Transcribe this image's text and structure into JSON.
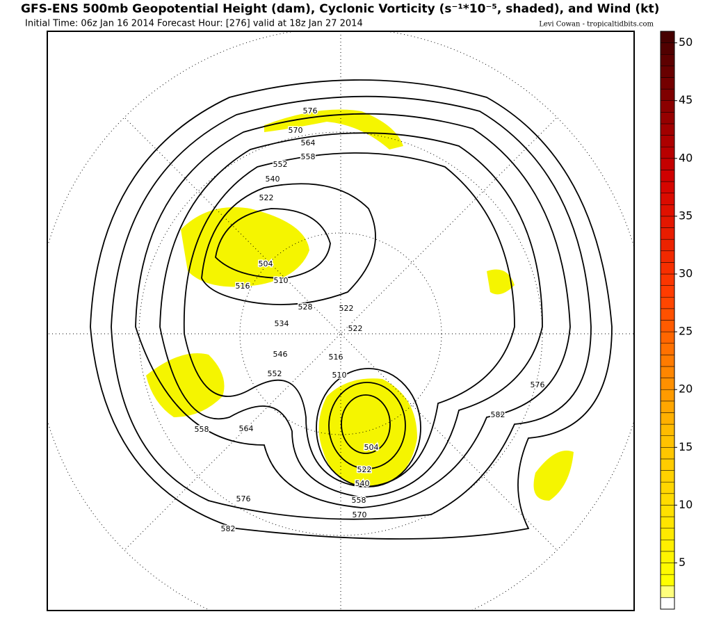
{
  "header": {
    "title": "GFS-ENS 500mb Geopotential Height (dam), Cyclonic Vorticity (s⁻¹*10⁻⁵, shaded), and Wind (kt)",
    "subtitle": "Initial Time: 06z Jan 16 2014 Forecast Hour: [276] valid at 18z Jan 27 2014",
    "credit": "Levi Cowan - tropicaltidbits.com"
  },
  "map": {
    "contour_labels": [
      "576",
      "570",
      "564",
      "558",
      "552",
      "540",
      "522",
      "504",
      "510",
      "516",
      "528",
      "534",
      "522",
      "522",
      "516",
      "510",
      "546",
      "552",
      "558",
      "564",
      "576",
      "582",
      "576",
      "582",
      "504",
      "522",
      "540",
      "558",
      "570"
    ]
  },
  "colorbar": {
    "range": [
      1,
      51
    ],
    "ticks": [
      5,
      10,
      15,
      20,
      25,
      30,
      35,
      40,
      45,
      50
    ]
  }
}
